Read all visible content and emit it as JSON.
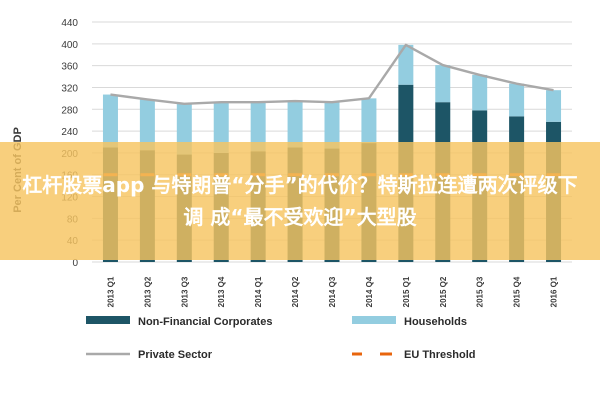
{
  "chart_data": {
    "type": "bar",
    "stacked": true,
    "ylabel": "Per Cent of GDP",
    "ylim": [
      0,
      440
    ],
    "yticks": [
      0,
      40,
      80,
      120,
      160,
      200,
      240,
      280,
      320,
      360,
      400,
      440
    ],
    "grid": true,
    "legend_position": "bottom",
    "categories": [
      "2013 Q1",
      "2013 Q2",
      "2013 Q3",
      "2013 Q4",
      "2014 Q1",
      "2014 Q2",
      "2014 Q3",
      "2014 Q4",
      "2015 Q1",
      "2015 Q2",
      "2015 Q3",
      "2015 Q4",
      "2016 Q1"
    ],
    "series": [
      {
        "name": "Non-Financial Corporates",
        "kind": "bar",
        "color": "#1d5566",
        "values": [
          210,
          205,
          197,
          200,
          203,
          210,
          208,
          218,
          325,
          293,
          278,
          267,
          257
        ]
      },
      {
        "name": "Households",
        "kind": "bar",
        "color": "#93cde0",
        "values": [
          97,
          93,
          93,
          93,
          90,
          85,
          85,
          82,
          73,
          68,
          65,
          60,
          58
        ]
      },
      {
        "name": "Private Sector",
        "kind": "line",
        "color": "#a9a9a9",
        "values": [
          307,
          298,
          290,
          293,
          293,
          295,
          293,
          300,
          398,
          361,
          343,
          327,
          315
        ]
      },
      {
        "name": "EU Threshold",
        "kind": "dashed-line",
        "color": "#e8650d",
        "values": [
          160,
          160,
          160,
          160,
          160,
          160,
          160,
          160,
          160,
          160,
          160,
          160,
          160
        ]
      }
    ]
  },
  "banner": {
    "text": "杠杆股票app 与特朗普“分手”的代价？特斯拉连遭两次评级下调 成“最不受欢迎”大型股"
  }
}
